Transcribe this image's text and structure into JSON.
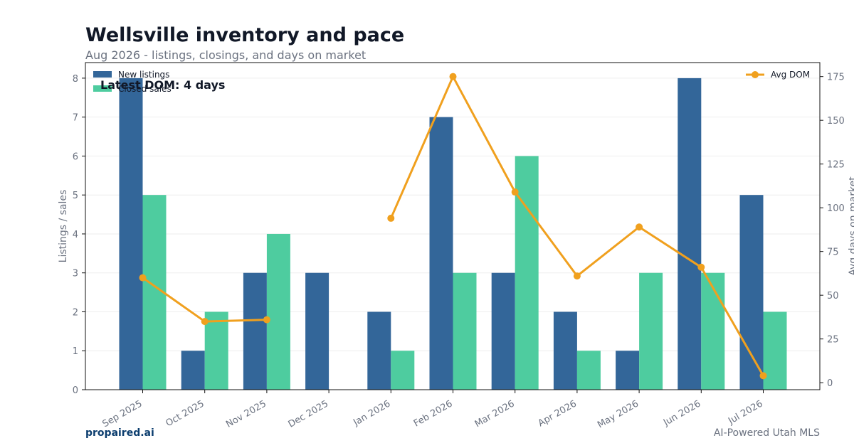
{
  "header": {
    "title": "Wellsville inventory and pace",
    "subtitle": "Aug 2026 - listings, closings, and days on market"
  },
  "footer": {
    "brand": "propaired.ai",
    "tagline": "AI-Powered Utah MLS"
  },
  "chart_data": {
    "type": "bar",
    "categories": [
      "Sep 2025",
      "Oct 2025",
      "Nov 2025",
      "Dec 2025",
      "Jan 2026",
      "Feb 2026",
      "Mar 2026",
      "Apr 2026",
      "May 2026",
      "Jun 2026",
      "Jul 2026"
    ],
    "series": [
      {
        "name": "New listings",
        "type": "bar",
        "axis": "left",
        "color": "#336699",
        "values": [
          8,
          1,
          3,
          3,
          2,
          7,
          3,
          2,
          1,
          8,
          5
        ]
      },
      {
        "name": "Closed sales",
        "type": "bar",
        "axis": "left",
        "color": "#4ecc9f",
        "values": [
          5,
          2,
          4,
          0,
          1,
          3,
          6,
          1,
          3,
          3,
          2
        ]
      },
      {
        "name": "Avg DOM",
        "type": "line",
        "axis": "right",
        "color": "#f0a01e",
        "values": [
          60,
          35,
          36,
          null,
          94,
          175,
          109,
          61,
          89,
          66,
          4
        ]
      }
    ],
    "ylabel": "Listings / sales",
    "y2label": "Avg days on market",
    "ylim": [
      0,
      8.4
    ],
    "y2lim": [
      -4,
      183
    ],
    "yticks": [
      0,
      1,
      2,
      3,
      4,
      5,
      6,
      7,
      8
    ],
    "y2ticks": [
      0,
      25,
      50,
      75,
      100,
      125,
      150,
      175
    ],
    "annotation": "Latest DOM: 4 days",
    "legend_left": "top-left",
    "legend_right": "top-right",
    "grid": true
  }
}
